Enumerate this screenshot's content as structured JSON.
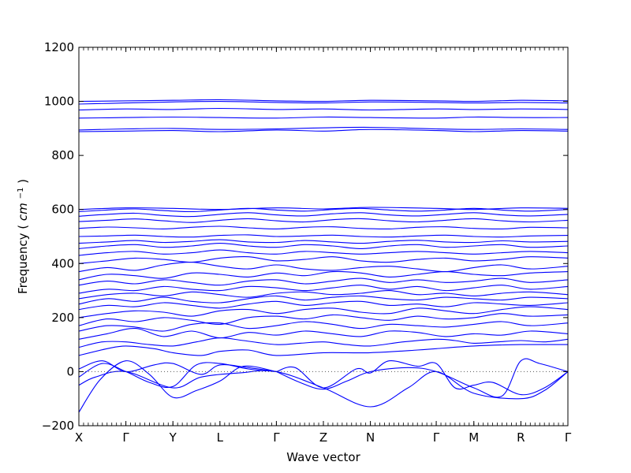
{
  "chart_data": {
    "type": "line",
    "title": "",
    "xlabel": "Wave vector",
    "ylabel": "Frequency",
    "ylabel_unit_base": "cm",
    "ylabel_unit_exp": "−1",
    "ylim": [
      -200,
      1200
    ],
    "y_ticks": [
      "−200",
      "0",
      "200",
      "400",
      "600",
      "800",
      "1000",
      "1200"
    ],
    "y_tick_values": [
      -200,
      0,
      200,
      400,
      600,
      800,
      1000,
      1200
    ],
    "x_ticks": [
      "X",
      "Γ",
      "Y",
      "L",
      "Γ",
      "Z",
      "N",
      "Γ",
      "M",
      "R",
      "Γ"
    ],
    "x_tick_positions": [
      0,
      1,
      2,
      3,
      4.2,
      5.2,
      6.2,
      7.6,
      8.4,
      9.4,
      10.4
    ],
    "xlim": [
      0,
      10.4
    ],
    "grid": false,
    "line_color": "#0000ff",
    "zero_line_color": "#555555",
    "series": [
      {
        "x": [
          0,
          0.45,
          1,
          1.5,
          2,
          2.5,
          3,
          3.5,
          4.2
        ],
        "values": [
          -150,
          -30,
          40,
          -10,
          -95,
          -70,
          -35,
          20,
          0
        ]
      },
      {
        "x": [
          0,
          0.35,
          1,
          2,
          2.6,
          3.4,
          4.2,
          5.2,
          6.2,
          7.0,
          7.6,
          8.4,
          9.4,
          9.9,
          10.4
        ],
        "values": [
          -50,
          -20,
          0,
          -60,
          -20,
          -5,
          0,
          -60,
          -130,
          -60,
          0,
          -80,
          -100,
          -70,
          0
        ]
      },
      {
        "x": [
          0,
          0.5,
          1,
          1.5,
          2,
          2.5,
          3,
          3.6,
          4.2
        ],
        "values": [
          -20,
          30,
          0,
          -40,
          -55,
          25,
          30,
          10,
          0
        ]
      },
      {
        "x": [
          4.2,
          4.6,
          5.2,
          5.9,
          6.2,
          6.6,
          7.2,
          7.6,
          8.0,
          8.4,
          8.8,
          9.4,
          9.9,
          10.4
        ],
        "values": [
          0,
          15,
          -60,
          10,
          -5,
          40,
          20,
          30,
          -60,
          -50,
          -40,
          -85,
          -60,
          0
        ]
      },
      {
        "x": [
          4.2,
          4.7,
          5.2,
          5.7,
          6.2,
          7.0,
          7.6,
          8.4,
          9.0,
          9.4,
          9.8,
          10.4
        ],
        "values": [
          0,
          -40,
          -65,
          -35,
          0,
          15,
          0,
          -60,
          -90,
          40,
          30,
          0
        ]
      },
      {
        "x": [
          0,
          0.5,
          1,
          1.6,
          2.0,
          2.6,
          3.0,
          3.6,
          4.2
        ],
        "values": [
          10,
          40,
          0,
          25,
          30,
          -10,
          25,
          15,
          0
        ]
      },
      {
        "x": [
          0,
          0.6,
          1.0,
          1.6,
          2.0,
          2.6,
          3.0,
          3.6,
          4.2,
          5.2,
          6.2,
          7.2,
          7.6,
          8.4,
          9.4,
          10.4
        ],
        "values": [
          60,
          85,
          95,
          85,
          70,
          60,
          75,
          80,
          60,
          70,
          70,
          80,
          85,
          95,
          100,
          100
        ]
      },
      {
        "x": [
          0,
          0.5,
          1,
          1.5,
          2,
          2.5,
          3,
          3.5,
          4.2,
          4.7,
          5.2,
          5.7,
          6.2,
          6.9,
          7.6,
          8.0,
          8.4,
          8.9,
          9.4,
          9.9,
          10.4
        ],
        "values": [
          90,
          110,
          110,
          100,
          95,
          110,
          125,
          115,
          100,
          105,
          110,
          100,
          95,
          110,
          120,
          115,
          105,
          110,
          115,
          110,
          120
        ]
      },
      {
        "x": [
          0,
          0.6,
          1.2,
          1.8,
          2.4,
          3.0,
          3.6,
          4.2,
          4.8,
          5.4,
          6.0,
          6.6,
          7.2,
          7.8,
          8.4,
          9.0,
          9.6,
          10.4
        ],
        "values": [
          120,
          140,
          160,
          130,
          150,
          125,
          145,
          135,
          150,
          140,
          130,
          150,
          145,
          130,
          140,
          135,
          150,
          140
        ]
      },
      {
        "x": [
          0,
          0.6,
          1.2,
          1.8,
          2.4,
          3.0,
          3.6,
          4.2,
          4.8,
          5.4,
          6.0,
          6.6,
          7.2,
          7.8,
          8.4,
          9.0,
          9.6,
          10.4
        ],
        "values": [
          150,
          170,
          165,
          150,
          175,
          180,
          160,
          170,
          185,
          175,
          160,
          175,
          170,
          165,
          175,
          185,
          170,
          180
        ]
      },
      {
        "x": [
          0,
          0.6,
          1.2,
          1.8,
          2.4,
          3.0,
          3.6,
          4.2,
          4.8,
          5.4,
          6.0,
          6.6,
          7.2,
          7.8,
          8.4,
          9.0,
          9.6,
          10.4
        ],
        "values": [
          170,
          195,
          185,
          200,
          190,
          175,
          200,
          205,
          195,
          210,
          200,
          190,
          205,
          195,
          200,
          215,
          205,
          210
        ]
      },
      {
        "x": [
          0,
          0.6,
          1.2,
          1.8,
          2.4,
          3.0,
          3.6,
          4.2,
          4.8,
          5.4,
          6.0,
          6.6,
          7.2,
          7.8,
          8.4,
          9.0,
          9.6,
          10.4
        ],
        "values": [
          200,
          215,
          225,
          220,
          205,
          225,
          230,
          215,
          230,
          235,
          220,
          215,
          235,
          225,
          215,
          230,
          240,
          230
        ]
      },
      {
        "x": [
          0,
          0.6,
          1.2,
          1.8,
          2.4,
          3.0,
          3.6,
          4.2,
          4.8,
          5.4,
          6.0,
          6.6,
          7.2,
          7.8,
          8.4,
          9.0,
          9.6,
          10.4
        ],
        "values": [
          230,
          245,
          240,
          255,
          245,
          235,
          250,
          260,
          245,
          255,
          260,
          245,
          250,
          240,
          255,
          250,
          245,
          255
        ]
      },
      {
        "x": [
          0,
          0.6,
          1.2,
          1.8,
          2.4,
          3.0,
          3.6,
          4.2,
          4.8,
          5.4,
          6.0,
          6.6,
          7.2,
          7.8,
          8.4,
          9.0,
          9.6,
          10.4
        ],
        "values": [
          250,
          270,
          260,
          275,
          260,
          255,
          270,
          280,
          265,
          275,
          280,
          270,
          265,
          275,
          270,
          265,
          275,
          270
        ]
      },
      {
        "x": [
          0,
          0.6,
          1.2,
          1.8,
          2.4,
          3.0,
          3.6,
          4.2,
          4.8,
          5.4,
          6.0,
          6.6,
          7.2,
          7.8,
          8.4,
          9.0,
          9.6,
          10.4
        ],
        "values": [
          270,
          285,
          290,
          280,
          295,
          285,
          275,
          290,
          295,
          285,
          290,
          300,
          285,
          290,
          280,
          290,
          295,
          285
        ]
      },
      {
        "x": [
          0,
          0.6,
          1.2,
          1.8,
          2.4,
          3.0,
          3.6,
          4.2,
          4.8,
          5.4,
          6.0,
          6.6,
          7.2,
          7.8,
          8.4,
          9.0,
          9.6,
          10.4
        ],
        "values": [
          290,
          305,
          300,
          315,
          305,
          300,
          315,
          310,
          300,
          310,
          320,
          305,
          315,
          300,
          310,
          320,
          305,
          315
        ]
      },
      {
        "x": [
          0,
          0.6,
          1.2,
          1.8,
          2.4,
          3.0,
          3.6,
          4.2,
          4.8,
          5.4,
          6.0,
          6.6,
          7.2,
          7.8,
          8.4,
          9.0,
          9.6,
          10.4
        ],
        "values": [
          320,
          335,
          325,
          340,
          330,
          320,
          335,
          340,
          325,
          335,
          345,
          330,
          340,
          330,
          335,
          345,
          330,
          340
        ]
      },
      {
        "x": [
          0,
          0.6,
          1.2,
          1.8,
          2.4,
          3.0,
          3.6,
          4.2,
          4.8,
          5.4,
          6.0,
          6.6,
          7.2,
          7.8,
          8.4,
          9.0,
          9.6,
          10.4
        ],
        "values": [
          340,
          360,
          355,
          345,
          365,
          360,
          350,
          365,
          355,
          370,
          365,
          350,
          360,
          370,
          360,
          355,
          365,
          370
        ]
      },
      {
        "x": [
          0,
          0.6,
          1.2,
          1.8,
          2.4,
          3.0,
          3.6,
          4.2,
          4.8,
          5.4,
          6.0,
          6.6,
          7.2,
          7.8,
          8.4,
          9.0,
          9.6,
          10.4
        ],
        "values": [
          370,
          385,
          375,
          395,
          405,
          390,
          380,
          395,
          380,
          375,
          385,
          390,
          380,
          370,
          385,
          395,
          380,
          390
        ]
      },
      {
        "x": [
          0,
          0.6,
          1.2,
          1.8,
          2.4,
          3.0,
          3.6,
          4.2,
          4.8,
          5.4,
          6.0,
          6.6,
          7.2,
          7.8,
          8.4,
          9.0,
          9.6,
          10.4
        ],
        "values": [
          400,
          410,
          420,
          415,
          405,
          420,
          425,
          410,
          415,
          425,
          410,
          405,
          415,
          420,
          410,
          415,
          425,
          420
        ]
      },
      {
        "x": [
          0,
          0.6,
          1.2,
          1.8,
          2.4,
          3.0,
          3.6,
          4.2,
          4.8,
          5.4,
          6.0,
          6.6,
          7.2,
          7.8,
          8.4,
          9.0,
          9.6,
          10.4
        ],
        "values": [
          430,
          440,
          445,
          435,
          440,
          450,
          440,
          435,
          445,
          440,
          435,
          440,
          445,
          440,
          435,
          440,
          445,
          440
        ]
      },
      {
        "x": [
          0,
          0.6,
          1.2,
          1.8,
          2.4,
          3.0,
          3.6,
          4.2,
          4.8,
          5.4,
          6.0,
          6.6,
          7.2,
          7.8,
          8.4,
          9.0,
          9.6,
          10.4
        ],
        "values": [
          455,
          465,
          470,
          460,
          465,
          475,
          465,
          460,
          470,
          465,
          455,
          465,
          470,
          460,
          465,
          470,
          460,
          465
        ]
      },
      {
        "x": [
          0,
          0.6,
          1.2,
          1.8,
          2.4,
          3.0,
          3.6,
          4.2,
          4.8,
          5.4,
          6.0,
          6.6,
          7.2,
          7.8,
          8.4,
          9.0,
          9.6,
          10.4
        ],
        "values": [
          475,
          480,
          485,
          478,
          482,
          488,
          480,
          478,
          485,
          480,
          475,
          482,
          486,
          480,
          478,
          484,
          480,
          482
        ]
      },
      {
        "x": [
          0,
          0.6,
          1.2,
          1.8,
          2.4,
          3.0,
          3.6,
          4.2,
          4.8,
          5.4,
          6.0,
          6.6,
          7.2,
          7.8,
          8.4,
          9.0,
          9.6,
          10.4
        ],
        "values": [
          500,
          502,
          505,
          500,
          498,
          504,
          506,
          500,
          502,
          505,
          500,
          498,
          502,
          505,
          500,
          498,
          502,
          504
        ]
      },
      {
        "x": [
          0,
          0.6,
          1.2,
          1.8,
          2.4,
          3.0,
          3.6,
          4.2,
          4.8,
          5.4,
          6.0,
          6.6,
          7.2,
          7.8,
          8.4,
          9.0,
          9.6,
          10.4
        ],
        "values": [
          530,
          535,
          532,
          528,
          534,
          538,
          532,
          528,
          534,
          536,
          530,
          528,
          534,
          536,
          530,
          528,
          534,
          532
        ]
      },
      {
        "x": [
          0,
          0.6,
          1.2,
          1.8,
          2.4,
          3.0,
          3.6,
          4.2,
          4.8,
          5.4,
          6.0,
          6.6,
          7.2,
          7.8,
          8.4,
          9.0,
          9.6,
          10.4
        ],
        "values": [
          555,
          560,
          565,
          558,
          552,
          560,
          566,
          558,
          554,
          562,
          566,
          558,
          554,
          560,
          566,
          558,
          554,
          560
        ]
      },
      {
        "x": [
          0,
          0.6,
          1.2,
          1.8,
          2.4,
          3.0,
          3.6,
          4.2,
          4.8,
          5.4,
          6.0,
          6.6,
          7.2,
          7.8,
          8.4,
          9.0,
          9.6,
          10.4
        ],
        "values": [
          575,
          582,
          586,
          578,
          574,
          582,
          588,
          580,
          576,
          584,
          588,
          580,
          576,
          582,
          588,
          580,
          576,
          582
        ]
      },
      {
        "x": [
          0,
          0.6,
          1.2,
          1.8,
          2.4,
          3.0,
          3.6,
          4.2,
          4.8,
          5.4,
          6.0,
          6.6,
          7.2,
          7.8,
          8.4,
          9.0,
          9.6,
          10.4
        ],
        "values": [
          592,
          598,
          602,
          596,
          592,
          598,
          604,
          598,
          594,
          600,
          604,
          598,
          594,
          598,
          604,
          598,
          594,
          600
        ]
      },
      {
        "x": [
          0,
          1.0,
          2.0,
          3.0,
          4.2,
          5.2,
          6.2,
          7.6,
          8.4,
          9.4,
          10.4
        ],
        "values": [
          600,
          606,
          604,
          600,
          606,
          602,
          608,
          604,
          600,
          606,
          604
        ]
      },
      {
        "x": [
          0,
          1.0,
          2.0,
          3.0,
          4.2,
          5.2,
          6.2,
          7.6,
          8.4,
          9.4,
          10.4
        ],
        "values": [
          888,
          890,
          892,
          888,
          894,
          890,
          896,
          892,
          888,
          892,
          890
        ]
      },
      {
        "x": [
          0,
          1.0,
          2.0,
          3.0,
          4.2,
          5.2,
          6.2,
          7.6,
          8.4,
          9.4,
          10.4
        ],
        "values": [
          894,
          898,
          900,
          896,
          898,
          902,
          904,
          898,
          896,
          898,
          896
        ]
      },
      {
        "x": [
          0,
          1.0,
          2.0,
          3.0,
          4.2,
          5.2,
          6.2,
          7.6,
          8.4,
          9.4,
          10.4
        ],
        "values": [
          938,
          940,
          942,
          940,
          938,
          942,
          940,
          938,
          942,
          940,
          940
        ]
      },
      {
        "x": [
          0,
          1.0,
          2.0,
          3.0,
          4.2,
          5.2,
          6.2,
          7.6,
          8.4,
          9.4,
          10.4
        ],
        "values": [
          968,
          972,
          970,
          974,
          970,
          972,
          968,
          972,
          970,
          972,
          970
        ]
      },
      {
        "x": [
          0,
          1.0,
          2.0,
          3.0,
          4.2,
          5.2,
          6.2,
          7.6,
          8.4,
          9.4,
          10.4
        ],
        "values": [
          990,
          994,
          998,
          1000,
          996,
          994,
          998,
          996,
          994,
          996,
          994
        ]
      },
      {
        "x": [
          0,
          1.0,
          2.0,
          3.0,
          4.2,
          5.2,
          6.2,
          7.6,
          8.4,
          9.4,
          10.4
        ],
        "values": [
          1000,
          1002,
          1004,
          1006,
          1002,
          1000,
          1004,
          1002,
          1000,
          1004,
          1002
        ]
      }
    ]
  }
}
